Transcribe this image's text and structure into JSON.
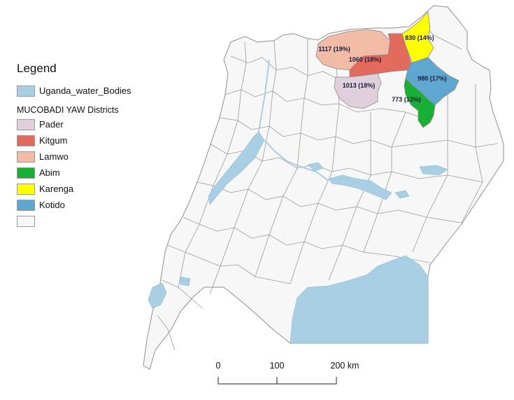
{
  "legend": {
    "title": "Legend",
    "water_label": "Uganda_water_Bodies",
    "group_title": "MUCOBADI YAW Districts",
    "items": [
      {
        "label": "Pader",
        "color": "#e0d0dc"
      },
      {
        "label": "Kitgum",
        "color": "#e36b5e"
      },
      {
        "label": "Lamwo",
        "color": "#f2bba6"
      },
      {
        "label": "Abim",
        "color": "#18b034"
      },
      {
        "label": "Karenga",
        "color": "#ffff00"
      },
      {
        "label": "Kotido",
        "color": "#5ea7d1"
      },
      {
        "label": "",
        "color": "#f7f7f7"
      }
    ]
  },
  "colors": {
    "water": "#a8cfe3",
    "land": "#f7f7f7",
    "border": "#9a9a9a"
  },
  "districts": {
    "lamwo": {
      "label": "1117 (19%)"
    },
    "kitgum": {
      "label": "1060 (18%)"
    },
    "pader": {
      "label": "1013 (18%)"
    },
    "karenga": {
      "label": "830 (14%)"
    },
    "kotido": {
      "label": "980 (17%)"
    },
    "abim": {
      "label": "773 (13%)"
    }
  },
  "scale_bar": {
    "labels": [
      "0",
      "100",
      "200 km"
    ]
  }
}
